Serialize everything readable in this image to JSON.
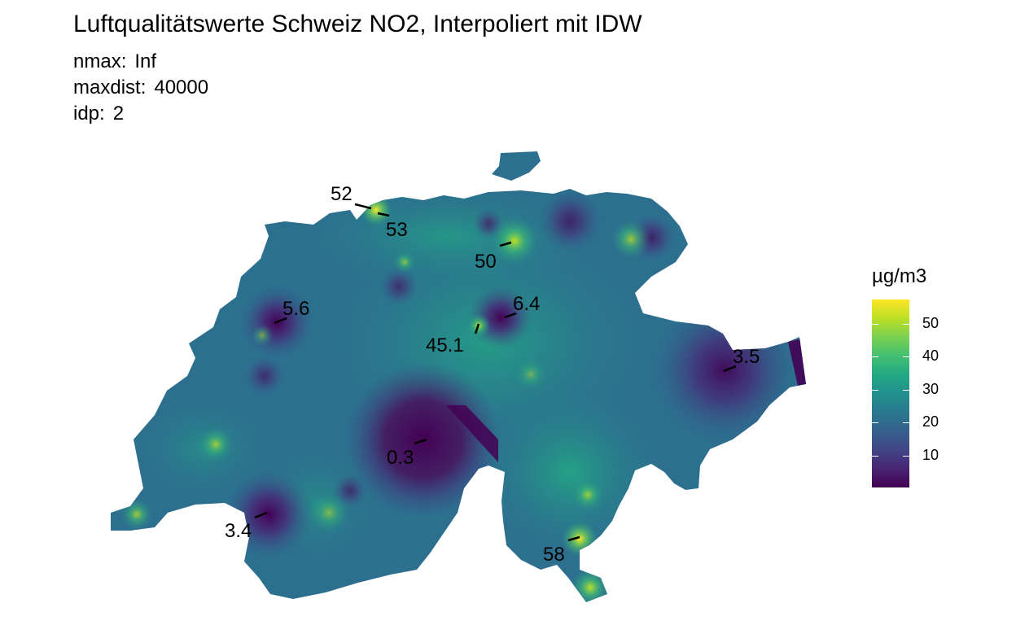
{
  "title": "Luftqualitätswerte Schweiz NO2, Interpoliert mit IDW",
  "params": [
    {
      "key": "nmax:",
      "value": "Inf"
    },
    {
      "key": "maxdist:",
      "value": "40000"
    },
    {
      "key": "idp:",
      "value": "2"
    }
  ],
  "legend": {
    "title": "µg/m3",
    "ticks": [
      "10",
      "20",
      "30",
      "40",
      "50"
    ],
    "range": [
      0.3,
      58
    ],
    "colors": [
      "#440154",
      "#414487",
      "#2a788e",
      "#22a884",
      "#7ad151",
      "#fde725"
    ]
  },
  "stations": [
    {
      "label": "52",
      "value": 52
    },
    {
      "label": "53",
      "value": 53
    },
    {
      "label": "50",
      "value": 50
    },
    {
      "label": "5.6",
      "value": 5.6
    },
    {
      "label": "6.4",
      "value": 6.4
    },
    {
      "label": "45.1",
      "value": 45.1
    },
    {
      "label": "3.5",
      "value": 3.5
    },
    {
      "label": "0.3",
      "value": 0.3
    },
    {
      "label": "3.4",
      "value": 3.4
    },
    {
      "label": "58",
      "value": 58
    }
  ]
}
